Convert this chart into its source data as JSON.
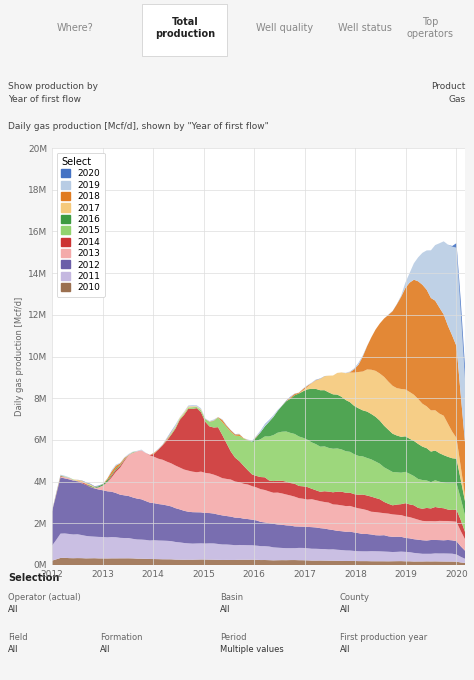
{
  "tabs": [
    "Where?",
    "Total\nproduction",
    "Well quality",
    "Well status",
    "Top\noperators"
  ],
  "active_tab": 1,
  "chart_title": "Daily gas production [Mcf/d], shown by \"Year of first flow\"",
  "ylabel": "Daily gas production [Mcf/d]",
  "yticks": [
    0,
    2000000,
    4000000,
    6000000,
    8000000,
    10000000,
    12000000,
    14000000,
    16000000,
    18000000,
    20000000
  ],
  "ytick_labels": [
    "0M",
    "2M",
    "4M",
    "6M",
    "8M",
    "10M",
    "12M",
    "14M",
    "16M",
    "18M",
    "20M"
  ],
  "xlim_start": 2012.0,
  "xlim_end": 2020.17,
  "legend_entries": [
    "2020",
    "2019",
    "2018",
    "2017",
    "2016",
    "2015",
    "2014",
    "2013",
    "2012",
    "2011",
    "2010"
  ],
  "legend_colors": [
    "#4472C4",
    "#B8CCE4",
    "#E07B20",
    "#F5C97A",
    "#3D9B40",
    "#92D36E",
    "#CC3333",
    "#F4AAAA",
    "#6B5EA8",
    "#C5B8E0",
    "#9B7050"
  ],
  "header_bg": "#F5F5F5",
  "info_bg": "#E8F4F4",
  "chart_bg": "#E8F4F4",
  "plot_bg": "#FFFFFF",
  "selection_bg": "#E8F4F4",
  "grid_color": "#DDDDDD"
}
